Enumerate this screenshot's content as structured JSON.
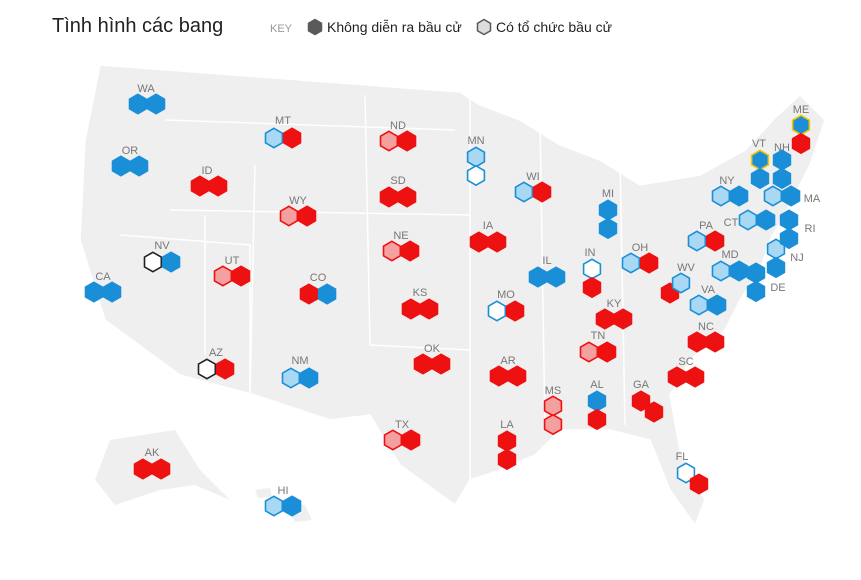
{
  "header": {
    "title": "Tình hình các bang",
    "key_label": "KEY"
  },
  "legend": [
    {
      "label": "Không diễn ra bầu cử",
      "fill": "#5a5a5a",
      "stroke": "#5a5a5a"
    },
    {
      "label": "Có tổ chức bầu cử",
      "fill": "#dddddd",
      "stroke": "#5a5a5a"
    }
  ],
  "states": [
    {
      "label": "WA",
      "seats": [
        [
          "#1a8fd8",
          "#1a8fd8"
        ],
        [
          "#1a8fd8",
          "#1a8fd8"
        ]
      ]
    },
    {
      "label": "OR",
      "seats": [
        [
          "#1a8fd8",
          "#1a8fd8"
        ],
        [
          "#1a8fd8",
          "#1a8fd8"
        ]
      ]
    },
    {
      "label": "CA",
      "seats": [
        [
          "#1a8fd8",
          "#1a8fd8"
        ],
        [
          "#1a8fd8",
          "#1a8fd8"
        ]
      ]
    },
    {
      "label": "NV",
      "seats": [
        [
          "#ffffff",
          "#222222"
        ],
        [
          "#1a8fd8",
          "#1a8fd8"
        ]
      ]
    },
    {
      "label": "MT",
      "seats": [
        [
          "#a8d8f4",
          "#1a8fd8"
        ],
        [
          "#ee1111",
          "#ee1111"
        ]
      ]
    },
    {
      "label": "ID",
      "seats": [
        [
          "#ee1111",
          "#ee1111"
        ],
        [
          "#ee1111",
          "#ee1111"
        ]
      ]
    },
    {
      "label": "WY",
      "seats": [
        [
          "#f4a0a0",
          "#ee1111"
        ],
        [
          "#ee1111",
          "#ee1111"
        ]
      ]
    },
    {
      "label": "UT",
      "seats": [
        [
          "#f4a0a0",
          "#ee1111"
        ],
        [
          "#ee1111",
          "#ee1111"
        ]
      ]
    },
    {
      "label": "AZ",
      "seats": [
        [
          "#ffffff",
          "#222222"
        ],
        [
          "#ee1111",
          "#ee1111"
        ]
      ]
    },
    {
      "label": "CO",
      "seats": [
        [
          "#ee1111",
          "#ee1111"
        ],
        [
          "#1a8fd8",
          "#1a8fd8"
        ]
      ]
    },
    {
      "label": "NM",
      "seats": [
        [
          "#a8d8f4",
          "#1a8fd8"
        ],
        [
          "#1a8fd8",
          "#1a8fd8"
        ]
      ]
    },
    {
      "label": "ND",
      "seats": [
        [
          "#f4a0a0",
          "#ee1111"
        ],
        [
          "#ee1111",
          "#ee1111"
        ]
      ]
    },
    {
      "label": "SD",
      "seats": [
        [
          "#ee1111",
          "#ee1111"
        ],
        [
          "#ee1111",
          "#ee1111"
        ]
      ]
    },
    {
      "label": "NE",
      "seats": [
        [
          "#f4a0a0",
          "#ee1111"
        ],
        [
          "#ee1111",
          "#ee1111"
        ]
      ]
    },
    {
      "label": "KS",
      "seats": [
        [
          "#ee1111",
          "#ee1111"
        ],
        [
          "#ee1111",
          "#ee1111"
        ]
      ]
    },
    {
      "label": "OK",
      "seats": [
        [
          "#ee1111",
          "#ee1111"
        ],
        [
          "#ee1111",
          "#ee1111"
        ]
      ]
    },
    {
      "label": "TX",
      "seats": [
        [
          "#f4a0a0",
          "#ee1111"
        ],
        [
          "#ee1111",
          "#ee1111"
        ]
      ]
    },
    {
      "label": "MN",
      "seats": [
        [
          "#a8d8f4",
          "#1a8fd8"
        ],
        [
          "#ffffff",
          "#1a8fd8"
        ]
      ]
    },
    {
      "label": "IA",
      "seats": [
        [
          "#ee1111",
          "#ee1111"
        ],
        [
          "#ee1111",
          "#ee1111"
        ]
      ]
    },
    {
      "label": "MO",
      "seats": [
        [
          "#ffffff",
          "#1a8fd8"
        ],
        [
          "#ee1111",
          "#ee1111"
        ]
      ]
    },
    {
      "label": "AR",
      "seats": [
        [
          "#ee1111",
          "#ee1111"
        ],
        [
          "#ee1111",
          "#ee1111"
        ]
      ]
    },
    {
      "label": "LA",
      "seats": [
        [
          "#ee1111",
          "#ee1111"
        ],
        [
          "#ee1111",
          "#ee1111"
        ]
      ]
    },
    {
      "label": "WI",
      "seats": [
        [
          "#a8d8f4",
          "#1a8fd8"
        ],
        [
          "#ee1111",
          "#ee1111"
        ]
      ]
    },
    {
      "label": "IL",
      "seats": [
        [
          "#1a8fd8",
          "#1a8fd8"
        ],
        [
          "#1a8fd8",
          "#1a8fd8"
        ]
      ]
    },
    {
      "label": "MS",
      "seats": [
        [
          "#f4a0a0",
          "#ee1111"
        ],
        [
          "#f4a0a0",
          "#ee1111"
        ]
      ]
    },
    {
      "label": "AL",
      "seats": [
        [
          "#1a8fd8",
          "#1a8fd8"
        ],
        [
          "#ee1111",
          "#ee1111"
        ]
      ]
    },
    {
      "label": "TN",
      "seats": [
        [
          "#f4a0a0",
          "#ee1111"
        ],
        [
          "#ee1111",
          "#ee1111"
        ]
      ]
    },
    {
      "label": "KY",
      "seats": [
        [
          "#ee1111",
          "#ee1111"
        ],
        [
          "#ee1111",
          "#ee1111"
        ]
      ]
    },
    {
      "label": "IN",
      "seats": [
        [
          "#ffffff",
          "#1a8fd8"
        ],
        [
          "#ee1111",
          "#ee1111"
        ]
      ]
    },
    {
      "label": "MI",
      "seats": [
        [
          "#1a8fd8",
          "#1a8fd8"
        ],
        [
          "#1a8fd8",
          "#1a8fd8"
        ]
      ]
    },
    {
      "label": "OH",
      "seats": [
        [
          "#a8d8f4",
          "#1a8fd8"
        ],
        [
          "#ee1111",
          "#ee1111"
        ]
      ]
    },
    {
      "label": "GA",
      "seats": [
        [
          "#ee1111",
          "#ee1111"
        ],
        [
          "#ee1111",
          "#ee1111"
        ]
      ]
    },
    {
      "label": "SC",
      "seats": [
        [
          "#ee1111",
          "#ee1111"
        ],
        [
          "#ee1111",
          "#ee1111"
        ]
      ]
    },
    {
      "label": "NC",
      "seats": [
        [
          "#ee1111",
          "#ee1111"
        ],
        [
          "#ee1111",
          "#ee1111"
        ]
      ]
    },
    {
      "label": "FL",
      "seats": [
        [
          "#ffffff",
          "#1a8fd8"
        ],
        [
          "#ee1111",
          "#ee1111"
        ]
      ]
    },
    {
      "label": "WV",
      "seats": [
        [
          "#ee1111",
          "#ee1111"
        ],
        [
          "#a8d8f4",
          "#1a8fd8"
        ]
      ]
    },
    {
      "label": "VA",
      "seats": [
        [
          "#a8d8f4",
          "#1a8fd8"
        ],
        [
          "#1a8fd8",
          "#1a8fd8"
        ]
      ]
    },
    {
      "label": "PA",
      "seats": [
        [
          "#a8d8f4",
          "#1a8fd8"
        ],
        [
          "#ee1111",
          "#ee1111"
        ]
      ]
    },
    {
      "label": "MD",
      "seats": [
        [
          "#a8d8f4",
          "#1a8fd8"
        ],
        [
          "#1a8fd8",
          "#1a8fd8"
        ]
      ]
    },
    {
      "label": "DE",
      "seats": [
        [
          "#1a8fd8",
          "#1a8fd8"
        ],
        [
          "#1a8fd8",
          "#1a8fd8"
        ]
      ]
    },
    {
      "label": "NJ",
      "seats": [
        [
          "#a8d8f4",
          "#1a8fd8"
        ],
        [
          "#1a8fd8",
          "#1a8fd8"
        ]
      ]
    },
    {
      "label": "NY",
      "seats": [
        [
          "#a8d8f4",
          "#1a8fd8"
        ],
        [
          "#1a8fd8",
          "#1a8fd8"
        ]
      ]
    },
    {
      "label": "CT",
      "seats": [
        [
          "#a8d8f4",
          "#1a8fd8"
        ],
        [
          "#1a8fd8",
          "#1a8fd8"
        ]
      ]
    },
    {
      "label": "RI",
      "seats": [
        [
          "#1a8fd8",
          "#1a8fd8"
        ],
        [
          "#1a8fd8",
          "#1a8fd8"
        ]
      ]
    },
    {
      "label": "MA",
      "seats": [
        [
          "#a8d8f4",
          "#1a8fd8"
        ],
        [
          "#1a8fd8",
          "#1a8fd8"
        ]
      ]
    },
    {
      "label": "VT",
      "seats": [
        [
          "#1a8fd8",
          "#f5c400"
        ],
        [
          "#1a8fd8",
          "#1a8fd8"
        ]
      ]
    },
    {
      "label": "NH",
      "seats": [
        [
          "#1a8fd8",
          "#1a8fd8"
        ],
        [
          "#1a8fd8",
          "#1a8fd8"
        ]
      ]
    },
    {
      "label": "ME",
      "seats": [
        [
          "#1a8fd8",
          "#f5c400"
        ],
        [
          "#ee1111",
          "#ee1111"
        ]
      ]
    },
    {
      "label": "AK",
      "seats": [
        [
          "#ee1111",
          "#ee1111"
        ],
        [
          "#ee1111",
          "#ee1111"
        ]
      ]
    },
    {
      "label": "HI",
      "seats": [
        [
          "#a8d8f4",
          "#1a8fd8"
        ],
        [
          "#1a8fd8",
          "#1a8fd8"
        ]
      ]
    }
  ]
}
